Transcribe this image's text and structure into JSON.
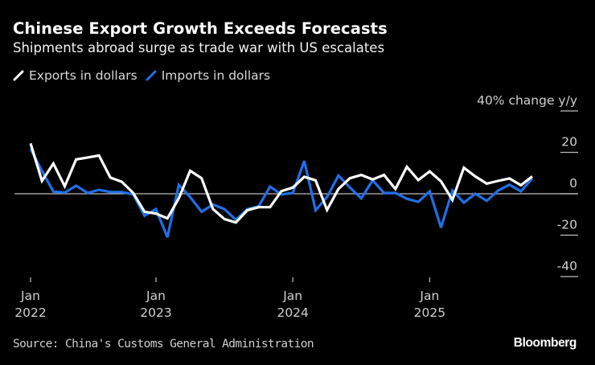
{
  "header": {
    "title": "Chinese Export Growth Exceeds Forecasts",
    "subtitle": "Shipments abroad surge as trade war with US escalates"
  },
  "footer": {
    "source": "Source: China's Customs General Administration",
    "logo": "Bloomberg"
  },
  "chart_data": {
    "type": "line",
    "title": "Chinese Export Growth Exceeds Forecasts",
    "subtitle": "Shipments abroad surge as trade war with US escalates",
    "ylabel": "% change y/y",
    "ylim": [
      -40,
      40
    ],
    "yticks": [
      40,
      20,
      0,
      -20,
      -40
    ],
    "ytick_labels": [
      "40% change y/y",
      "20",
      "0",
      "-20",
      "-40"
    ],
    "xticks": [
      {
        "date": "2022-01",
        "month": "Jan",
        "year": "2022"
      },
      {
        "date": "2023-01",
        "month": "Jan",
        "year": "2023"
      },
      {
        "date": "2024-01",
        "month": "Jan",
        "year": "2024"
      },
      {
        "date": "2025-01",
        "month": "Jan",
        "year": "2025"
      }
    ],
    "legend_position": "top-left",
    "grid": false,
    "x": [
      "2022-02",
      "2022-03",
      "2022-04",
      "2022-05",
      "2022-06",
      "2022-07",
      "2022-08",
      "2022-09",
      "2022-10",
      "2022-11",
      "2022-12",
      "2023-01",
      "2023-02",
      "2023-03",
      "2023-04",
      "2023-05",
      "2023-06",
      "2023-07",
      "2023-08",
      "2023-09",
      "2023-10",
      "2023-11",
      "2023-12",
      "2024-01",
      "2024-02",
      "2024-03",
      "2024-04",
      "2024-05",
      "2024-06",
      "2024-07",
      "2024-08",
      "2024-09",
      "2024-10",
      "2024-11",
      "2024-12",
      "2025-01",
      "2025-02",
      "2025-03",
      "2025-04",
      "2025-05",
      "2025-06",
      "2025-07",
      "2025-08",
      "2025-09",
      "2025-10"
    ],
    "series": [
      {
        "name": "Exports in dollars",
        "color": "#ffffff",
        "values": [
          24.3,
          6.2,
          14.6,
          3.6,
          16.6,
          17.5,
          18.5,
          7.8,
          5.8,
          0.4,
          -8.7,
          -9.6,
          -11.9,
          -2.2,
          11.1,
          7.5,
          -7.4,
          -12.2,
          -13.9,
          -8.0,
          -6.5,
          -6.5,
          1.3,
          3.0,
          8.2,
          6.5,
          -7.8,
          2.3,
          7.5,
          9.1,
          6.9,
          9.1,
          2.3,
          13.0,
          6.6,
          10.8,
          6.0,
          -3.0,
          12.6,
          8.4,
          4.9,
          6.2,
          7.4,
          4.1,
          8.4
        ]
      },
      {
        "name": "Imports in dollars",
        "color": "#1f6fe8",
        "values": [
          21.7,
          11.0,
          1.0,
          0.6,
          3.9,
          0.4,
          1.9,
          0.8,
          0.8,
          -0.3,
          -10.6,
          -7.4,
          -21.0,
          4.3,
          -1.6,
          -8.7,
          -5.2,
          -7.4,
          -12.6,
          -7.4,
          -6.1,
          3.4,
          -0.3,
          0.4,
          15.9,
          -8.0,
          -1.6,
          8.8,
          3.0,
          -2.2,
          6.5,
          0.4,
          0.4,
          -2.4,
          -3.9,
          1.2,
          -16.3,
          1.6,
          -4.3,
          0.0,
          -3.4,
          1.6,
          4.4,
          1.2,
          7.4
        ]
      }
    ]
  }
}
